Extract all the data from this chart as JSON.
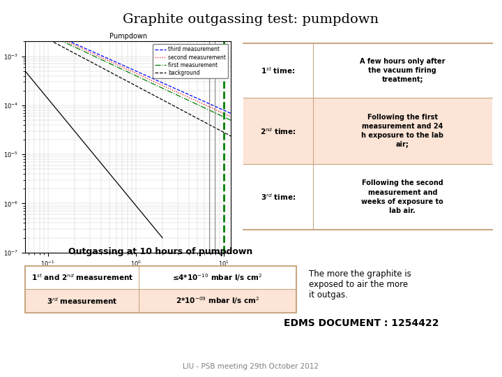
{
  "title": "Graphite outgassing test: pumpdown",
  "title_fontsize": 14,
  "background_color": "#ffffff",
  "plot_title": "Pumpdown",
  "right_table": {
    "rows": [
      {
        "label": "1$^{st}$ time:",
        "description": "A few hours only after\nthe vacuum firing\ntreatment;",
        "bg": "#ffffff"
      },
      {
        "label": "2$^{nd}$ time:",
        "description": "Following the first\nmeasurement and 24\nh exposure to the lab\nair;",
        "bg": "#fce4d6"
      },
      {
        "label": "3$^{rd}$ time:",
        "description": "Following the second\nmeasurement and\nweeks of exposure to\nlab air.",
        "bg": "#ffffff"
      }
    ],
    "border_color": "#c8a882"
  },
  "bottom_table_title": "Outgassing at 10 hours of pumpdown",
  "bottom_table_rows": [
    {
      "col1": "1$^{st}$ and 2$^{nd}$ measurement",
      "col2": "≤4*10$^{-10}$ mbar l/s cm$^{2}$",
      "bg": "#ffffff"
    },
    {
      "col1": "3$^{rd}$ measurement",
      "col2": "2*10$^{-09}$ mbar l/s cm$^{2}$",
      "bg": "#fce4d6"
    }
  ],
  "bottom_table_border": "#c8a882",
  "right_text": "The more the graphite is\nexposed to air the more\nit outgas.",
  "edms_text": "EDMS DOCUMENT : 1254422",
  "footer_text": "LIU - PSB meeting 29th October 2012"
}
